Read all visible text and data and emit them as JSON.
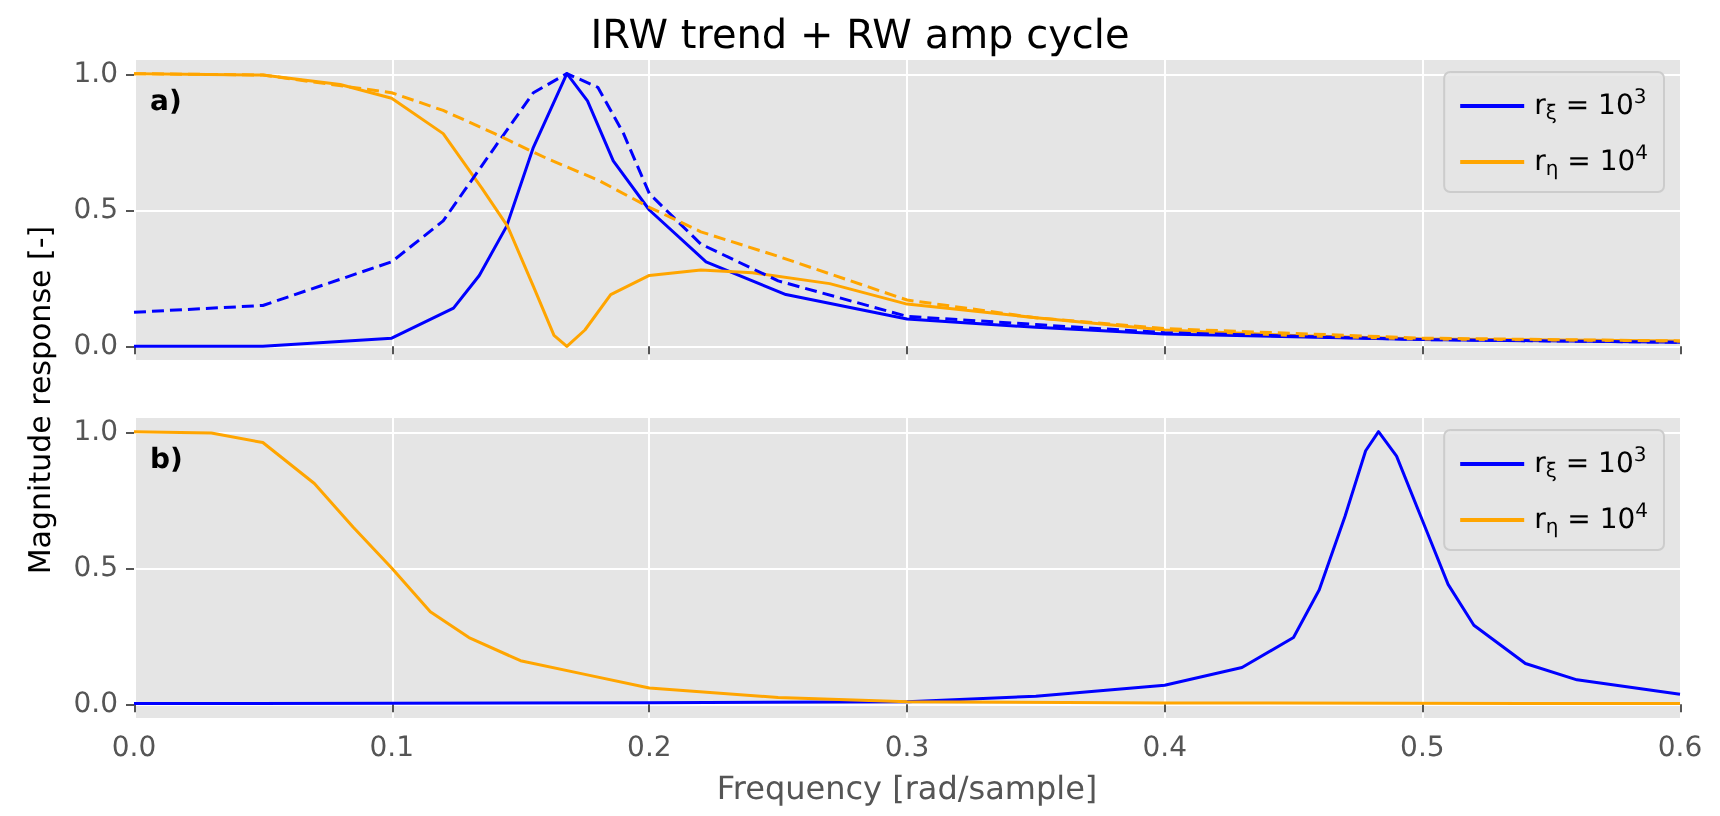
{
  "chart_data": [
    {
      "type": "line",
      "title": "IRW trend + RW amp cycle",
      "ylabel": "Magnitude response [-]",
      "annotations": [
        "a)"
      ],
      "xlim": [
        0,
        0.6
      ],
      "ylim": [
        -0.05,
        1.05
      ],
      "xticks": [
        {
          "value": 0,
          "label": null
        },
        {
          "value": 0.1,
          "label": null
        },
        {
          "value": 0.2,
          "label": null
        },
        {
          "value": 0.3,
          "label": null
        },
        {
          "value": 0.4,
          "label": null
        },
        {
          "value": 0.5,
          "label": null
        },
        {
          "value": 0.6,
          "label": null
        }
      ],
      "yticks": [
        {
          "value": 0,
          "label": "0.0"
        },
        {
          "value": 0.5,
          "label": "0.5"
        },
        {
          "value": 1,
          "label": "1.0"
        }
      ],
      "tick_labels": "y",
      "grid": true,
      "legend": "top right",
      "marker": "none",
      "series": [
        {
          "name": "r$_{ξ}$ = 10$^{3}$",
          "color": "#0000ff",
          "line_style": "solid",
          "x": [
            0,
            0.05,
            0.1,
            0.124,
            0.134,
            0.1446,
            0.155,
            0.168,
            0.176,
            0.186,
            0.2,
            0.222,
            0.253,
            0.3,
            0.35,
            0.4,
            0.5,
            0.6
          ],
          "values": [
            0,
            0,
            0.03,
            0.14,
            0.26,
            0.44,
            0.73,
            1.0,
            0.9,
            0.68,
            0.5,
            0.31,
            0.19,
            0.1,
            0.07,
            0.045,
            0.025,
            0.015
          ]
        },
        {
          "name": "r$_{η}$ = 10$^{4}$",
          "color": "#ffa500",
          "line_style": "solid",
          "x": [
            0,
            0.05,
            0.08,
            0.1,
            0.12,
            0.135,
            0.145,
            0.155,
            0.163,
            0.168,
            0.175,
            0.185,
            0.2,
            0.22,
            0.24,
            0.27,
            0.3,
            0.35,
            0.4,
            0.45,
            0.5,
            0.6
          ],
          "values": [
            1.0,
            0.995,
            0.96,
            0.91,
            0.78,
            0.58,
            0.44,
            0.22,
            0.04,
            0,
            0.06,
            0.19,
            0.26,
            0.28,
            0.27,
            0.23,
            0.155,
            0.105,
            0.06,
            0.04,
            0.027,
            0.02
          ]
        },
        {
          "color": "#0000ff",
          "line_style": "dashed",
          "x": [
            0,
            0.05,
            0.1,
            0.12,
            0.14,
            0.155,
            0.168,
            0.18,
            0.19,
            0.2,
            0.22,
            0.25,
            0.3,
            0.35,
            0.4,
            0.5,
            0.6
          ],
          "values": [
            0.125,
            0.15,
            0.31,
            0.46,
            0.73,
            0.93,
            1.0,
            0.95,
            0.78,
            0.56,
            0.375,
            0.24,
            0.11,
            0.08,
            0.05,
            0.025,
            0.015
          ]
        },
        {
          "color": "#ffa500",
          "line_style": "dashed",
          "x": [
            0,
            0.05,
            0.1,
            0.12,
            0.14,
            0.16,
            0.18,
            0.2,
            0.22,
            0.25,
            0.3,
            0.35,
            0.4,
            0.5,
            0.6
          ],
          "values": [
            1.0,
            0.995,
            0.93,
            0.865,
            0.78,
            0.69,
            0.61,
            0.51,
            0.42,
            0.33,
            0.17,
            0.105,
            0.065,
            0.03,
            0.02
          ]
        }
      ]
    },
    {
      "type": "line",
      "xlabel": "Frequency [rad/sample]",
      "annotations": [
        "b)"
      ],
      "xlim": [
        0,
        0.6
      ],
      "ylim": [
        -0.05,
        1.05
      ],
      "xticks": [
        {
          "value": 0,
          "label": "0.0"
        },
        {
          "value": 0.1,
          "label": "0.1"
        },
        {
          "value": 0.2,
          "label": "0.2"
        },
        {
          "value": 0.3,
          "label": "0.3"
        },
        {
          "value": 0.4,
          "label": "0.4"
        },
        {
          "value": 0.5,
          "label": "0.5"
        },
        {
          "value": 0.6,
          "label": "0.6"
        }
      ],
      "yticks": [
        {
          "value": 0,
          "label": "0.0"
        },
        {
          "value": 0.5,
          "label": "0.5"
        },
        {
          "value": 1,
          "label": "1.0"
        }
      ],
      "grid": true,
      "legend": "top right",
      "marker": "none",
      "series": [
        {
          "name": "r$_{ξ}$ = 10$^{3}$",
          "color": "#0000ff",
          "line_style": "solid",
          "x": [
            0,
            0.1,
            0.2,
            0.3,
            0.35,
            0.4,
            0.43,
            0.45,
            0.46,
            0.47,
            0.478,
            0.483,
            0.49,
            0.5,
            0.51,
            0.52,
            0.54,
            0.56,
            0.6
          ],
          "values": [
            0.003,
            0.004,
            0.006,
            0.01,
            0.03,
            0.07,
            0.135,
            0.245,
            0.42,
            0.69,
            0.93,
            1.0,
            0.91,
            0.675,
            0.44,
            0.29,
            0.15,
            0.09,
            0.037
          ]
        },
        {
          "name": "r$_{η}$ = 10$^{4}$",
          "color": "#ffa500",
          "line_style": "solid",
          "x": [
            0,
            0.03,
            0.05,
            0.07,
            0.085,
            0.1,
            0.115,
            0.13,
            0.15,
            0.175,
            0.2,
            0.25,
            0.3,
            0.4,
            0.6
          ],
          "values": [
            1.0,
            0.995,
            0.96,
            0.81,
            0.65,
            0.5,
            0.34,
            0.245,
            0.16,
            0.11,
            0.06,
            0.025,
            0.01,
            0.005,
            0.003
          ]
        }
      ]
    }
  ]
}
